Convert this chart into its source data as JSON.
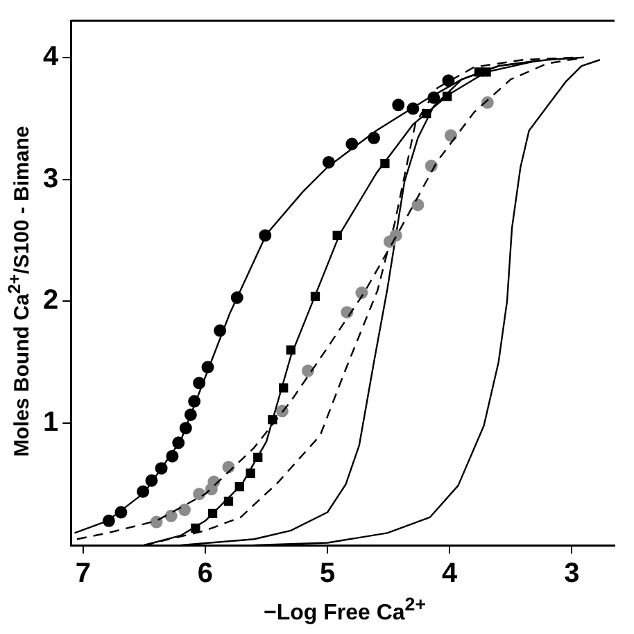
{
  "chart_data": {
    "type": "scatter",
    "xlabel": "−Log Free Ca$^{2+}$",
    "ylabel": "Moles Bound Ca$^{2+}$/S100 - Bimane",
    "xlim": [
      7.1,
      2.65
    ],
    "xticks": [
      7,
      6,
      5,
      4,
      3
    ],
    "ylim": [
      0,
      4.3
    ],
    "yticks": [
      1,
      2,
      3,
      4
    ],
    "grid": false,
    "legend": false,
    "series": [
      {
        "type": "line",
        "color": "#000000",
        "line_style": "solid",
        "marker": "none",
        "x": [
          7.07,
          6.8,
          6.5,
          6.2,
          6.0,
          5.8,
          5.5,
          5.2,
          5.0,
          4.6,
          4.2,
          3.9,
          3.6,
          3.3
        ],
        "values": [
          0.1,
          0.2,
          0.43,
          0.86,
          1.38,
          1.9,
          2.55,
          2.9,
          3.1,
          3.4,
          3.65,
          3.82,
          3.93,
          3.97
        ]
      },
      {
        "type": "scatter",
        "color": "#000000",
        "marker": "circle",
        "x": [
          6.79,
          6.69,
          6.51,
          6.44,
          6.36,
          6.27,
          6.22,
          6.16,
          6.12,
          6.09,
          6.05,
          5.98,
          5.88,
          5.74,
          5.51,
          4.99,
          4.8,
          4.62,
          4.42,
          4.3,
          4.13,
          4.01
        ],
        "values": [
          0.2,
          0.27,
          0.44,
          0.53,
          0.63,
          0.73,
          0.84,
          0.96,
          1.07,
          1.18,
          1.33,
          1.46,
          1.76,
          2.03,
          2.54,
          3.14,
          3.29,
          3.34,
          3.61,
          3.58,
          3.67,
          3.81
        ]
      },
      {
        "type": "line",
        "color": "#000000",
        "line_style": "solid",
        "marker": "none",
        "x": [
          6.5,
          6.2,
          6.0,
          5.7,
          5.5,
          5.3,
          5.1,
          4.9,
          4.6,
          4.3,
          4.0,
          3.7,
          3.3
        ],
        "values": [
          0.0,
          0.08,
          0.2,
          0.5,
          0.85,
          1.55,
          2.05,
          2.55,
          3.05,
          3.45,
          3.7,
          3.88,
          3.97
        ]
      },
      {
        "type": "scatter",
        "color": "#000000",
        "marker": "square",
        "x": [
          6.08,
          5.94,
          5.81,
          5.72,
          5.63,
          5.57,
          5.45,
          5.36,
          5.3,
          5.1,
          4.92,
          4.53,
          4.19,
          4.02,
          3.76,
          3.7
        ],
        "values": [
          0.14,
          0.26,
          0.36,
          0.48,
          0.59,
          0.72,
          1.03,
          1.29,
          1.6,
          2.04,
          2.54,
          3.13,
          3.54,
          3.68,
          3.88,
          3.88
        ]
      },
      {
        "type": "line",
        "color": "#000000",
        "line_style": "dashed",
        "marker": "none",
        "x": [
          7.05,
          6.8,
          6.4,
          6.0,
          5.6,
          5.3,
          5.0,
          4.7,
          4.4,
          4.1,
          3.8,
          3.5,
          3.2,
          2.95
        ],
        "values": [
          0.05,
          0.1,
          0.2,
          0.42,
          0.8,
          1.18,
          1.62,
          2.07,
          2.6,
          3.15,
          3.55,
          3.82,
          3.95,
          3.99
        ]
      },
      {
        "type": "scatter",
        "color": "#8c8c8c",
        "marker": "circle",
        "x": [
          6.4,
          6.28,
          6.17,
          6.05,
          5.95,
          5.93,
          5.81,
          5.37,
          5.16,
          4.84,
          4.72,
          4.49,
          4.44,
          4.26,
          4.15,
          3.99,
          3.69
        ],
        "values": [
          0.19,
          0.24,
          0.29,
          0.42,
          0.46,
          0.52,
          0.64,
          1.1,
          1.43,
          1.91,
          2.07,
          2.49,
          2.54,
          2.79,
          3.11,
          3.36,
          3.63
        ]
      },
      {
        "type": "line",
        "color": "#000000",
        "line_style": "dashed",
        "marker": "none",
        "x": [
          6.5,
          6.0,
          5.71,
          5.41,
          5.06,
          4.86,
          4.59,
          4.45,
          4.28,
          4.1,
          3.8,
          3.4,
          2.95
        ],
        "values": [
          0.0,
          0.12,
          0.23,
          0.51,
          0.9,
          1.42,
          2.09,
          2.64,
          3.46,
          3.75,
          3.92,
          3.98,
          4.0
        ]
      },
      {
        "type": "line",
        "color": "#000000",
        "line_style": "solid",
        "marker": "none",
        "x": [
          6.2,
          5.6,
          5.3,
          5.0,
          4.85,
          4.74,
          4.62,
          4.51,
          4.37,
          4.26,
          4.13,
          3.9,
          3.6,
          3.2,
          2.9
        ],
        "values": [
          0.0,
          0.05,
          0.12,
          0.27,
          0.5,
          0.82,
          1.5,
          2.1,
          2.98,
          3.34,
          3.6,
          3.82,
          3.93,
          3.98,
          4.0
        ]
      },
      {
        "type": "line",
        "color": "#000000",
        "line_style": "solid",
        "marker": "none",
        "x": [
          5.6,
          5.0,
          4.51,
          4.16,
          3.93,
          3.72,
          3.6,
          3.53,
          3.49,
          3.42,
          3.35,
          3.2,
          3.05,
          2.92,
          2.77
        ],
        "values": [
          0.0,
          0.02,
          0.1,
          0.23,
          0.49,
          0.98,
          1.5,
          2.0,
          2.6,
          3.1,
          3.4,
          3.6,
          3.8,
          3.93,
          3.98
        ]
      }
    ]
  }
}
